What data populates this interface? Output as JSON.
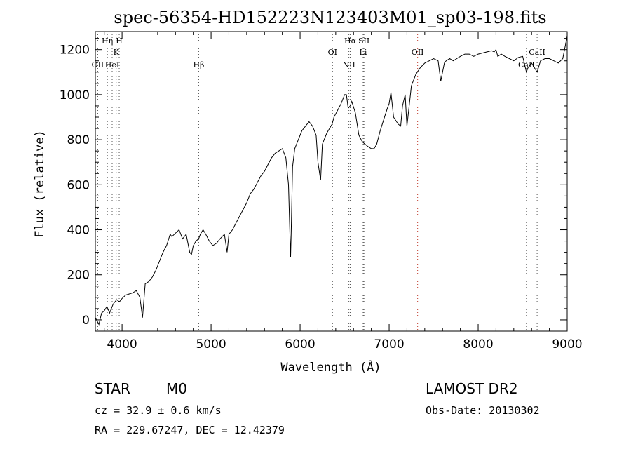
{
  "chart_data": {
    "type": "line",
    "title": "spec-56354-HD152223N123403M01_sp03-198.fits",
    "xlabel": "Wavelength (Å)",
    "ylabel": "Flux (relative)",
    "xlim": [
      3700,
      9000
    ],
    "ylim": [
      -50,
      1280
    ],
    "x_ticks": [
      4000,
      5000,
      6000,
      7000,
      8000,
      9000
    ],
    "y_ticks": [
      0,
      200,
      400,
      600,
      800,
      1000,
      1200
    ],
    "grid": false,
    "series": [
      {
        "x": [
          3700,
          3740,
          3770,
          3800,
          3830,
          3860,
          3900,
          3940,
          3970,
          4000,
          4040,
          4080,
          4120,
          4160,
          4200,
          4230,
          4260,
          4300,
          4340,
          4380,
          4420,
          4460,
          4500,
          4540,
          4560,
          4600,
          4640,
          4680,
          4720,
          4760,
          4780,
          4800,
          4830,
          4860,
          4880,
          4910,
          4940,
          4980,
          5020,
          5060,
          5100,
          5150,
          5180,
          5200,
          5240,
          5280,
          5320,
          5360,
          5400,
          5440,
          5480,
          5520,
          5560,
          5600,
          5640,
          5680,
          5720,
          5760,
          5800,
          5840,
          5870,
          5885,
          5893,
          5900,
          5915,
          5940,
          5980,
          6020,
          6060,
          6100,
          6140,
          6180,
          6200,
          6230,
          6250,
          6270,
          6300,
          6330,
          6360,
          6380,
          6420,
          6460,
          6500,
          6520,
          6540,
          6562,
          6580,
          6620,
          6660,
          6700,
          6730,
          6760,
          6800,
          6830,
          6860,
          6900,
          6940,
          6980,
          7000,
          7020,
          7050,
          7100,
          7130,
          7150,
          7180,
          7200,
          7250,
          7300,
          7350,
          7400,
          7450,
          7500,
          7550,
          7580,
          7600,
          7620,
          7640,
          7680,
          7720,
          7760,
          7800,
          7850,
          7900,
          7950,
          8000,
          8050,
          8100,
          8150,
          8180,
          8200,
          8220,
          8260,
          8300,
          8350,
          8400,
          8450,
          8500,
          8542,
          8560,
          8600,
          8662,
          8700,
          8750,
          8800,
          8850,
          8900,
          8950,
          9000
        ],
        "y": [
          10,
          -20,
          30,
          40,
          60,
          30,
          70,
          90,
          80,
          95,
          110,
          115,
          120,
          130,
          100,
          10,
          160,
          170,
          190,
          220,
          260,
          300,
          330,
          380,
          370,
          385,
          400,
          360,
          380,
          300,
          290,
          330,
          350,
          360,
          380,
          400,
          380,
          350,
          330,
          340,
          360,
          380,
          300,
          380,
          400,
          430,
          460,
          490,
          520,
          560,
          580,
          610,
          640,
          660,
          690,
          720,
          740,
          750,
          760,
          720,
          600,
          380,
          280,
          400,
          680,
          760,
          800,
          840,
          860,
          880,
          860,
          820,
          700,
          620,
          780,
          800,
          830,
          850,
          870,
          900,
          930,
          960,
          1000,
          1000,
          940,
          950,
          970,
          920,
          820,
          790,
          780,
          770,
          760,
          760,
          780,
          840,
          890,
          940,
          960,
          1010,
          900,
          870,
          860,
          950,
          1000,
          860,
          1040,
          1090,
          1120,
          1140,
          1150,
          1160,
          1150,
          1060,
          1100,
          1140,
          1150,
          1160,
          1150,
          1160,
          1170,
          1180,
          1180,
          1170,
          1180,
          1185,
          1190,
          1195,
          1190,
          1200,
          1170,
          1180,
          1170,
          1160,
          1150,
          1165,
          1170,
          1100,
          1120,
          1140,
          1100,
          1150,
          1160,
          1160,
          1150,
          1140,
          1160,
          1260
        ]
      }
    ],
    "line_markers": [
      {
        "label": "OII",
        "wavelength": 3727,
        "tier": 3
      },
      {
        "label": "Hη",
        "wavelength": 3835,
        "tier": 1
      },
      {
        "label": "HeI",
        "wavelength": 3889,
        "tier": 3
      },
      {
        "label": "K",
        "wavelength": 3934,
        "tier": 2
      },
      {
        "label": "H",
        "wavelength": 3968,
        "tier": 1
      },
      {
        "label": "Hβ",
        "wavelength": 4861,
        "tier": 3
      },
      {
        "label": "OI",
        "wavelength": 6364,
        "tier": 2
      },
      {
        "label": "NII",
        "wavelength": 6548,
        "tier": 3
      },
      {
        "label": "Hα",
        "wavelength": 6563,
        "tier": 1
      },
      {
        "label": "SII",
        "wavelength": 6717,
        "tier": 1
      },
      {
        "label": "Li",
        "wavelength": 6708,
        "tier": 2
      },
      {
        "label": "OII",
        "wavelength": 7320,
        "tier": 2
      },
      {
        "label": "CaII",
        "wavelength": 8542,
        "tier": 3
      },
      {
        "label": "CaII",
        "wavelength": 8662,
        "tier": 2
      }
    ]
  },
  "footer": {
    "object_type": "STAR",
    "subclass": "M0",
    "survey": "LAMOST DR2",
    "cz": "cz = 32.9 ± 0.6 km/s",
    "obs_date": "Obs-Date: 20130302",
    "coords": "RA = 229.67247, DEC =  12.42379"
  }
}
